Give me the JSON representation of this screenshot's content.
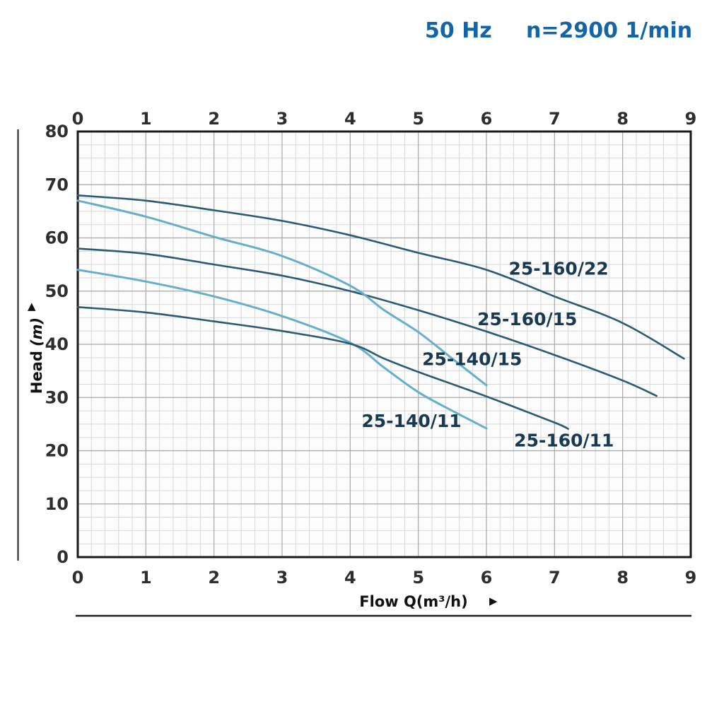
{
  "page": {
    "header": {
      "frequency": "50 Hz",
      "speed": "n=2900 1/min"
    }
  },
  "icons": {
    "y_axis_arrow": "▲",
    "x_axis_arrow": "▶"
  },
  "chart_data": {
    "type": "line",
    "header": {
      "frequency": "50 Hz",
      "speed": "n=2900 1/min"
    },
    "xlabel": "Flow Q(m³/h)",
    "ylabel_main": "Head",
    "ylabel_unit": "(m)",
    "xlim": [
      0,
      9
    ],
    "ylim": [
      0,
      80
    ],
    "x_ticks": [
      0,
      1,
      2,
      3,
      4,
      5,
      6,
      7,
      8,
      9
    ],
    "x_ticks_top": [
      0,
      1,
      2,
      3,
      4,
      5,
      6,
      7,
      8,
      9
    ],
    "y_ticks": [
      0,
      10,
      20,
      30,
      40,
      50,
      60,
      70,
      80
    ],
    "minor_x_step": 0.2,
    "minor_y_step": 2.5,
    "grid": true,
    "legend_position": "inline-curve-labels",
    "colors": {
      "dark_curve": "#2a5a74",
      "light_curve": "#66afcb",
      "curve_label": "#173a52",
      "header_text": "#1464a8",
      "grid_minor": "#d8d8d8",
      "grid_major": "#a8a8a8",
      "axis": "#1a1a1a",
      "tick_text": "#2e2e2e"
    },
    "series": [
      {
        "name": "25-160/22",
        "color": "dark_curve",
        "points": [
          [
            0,
            68
          ],
          [
            1,
            67
          ],
          [
            2,
            65.2
          ],
          [
            3,
            63.2
          ],
          [
            4,
            60.5
          ],
          [
            5,
            57.2
          ],
          [
            6,
            54
          ],
          [
            7,
            49
          ],
          [
            8,
            44
          ],
          [
            8.9,
            37.3
          ]
        ],
        "label_pos": {
          "q": 7.06,
          "h": 54.2
        }
      },
      {
        "name": "25-160/15",
        "color": "dark_curve",
        "points": [
          [
            0,
            58
          ],
          [
            1,
            57
          ],
          [
            2,
            55
          ],
          [
            3,
            52.9
          ],
          [
            4,
            50
          ],
          [
            5,
            46.4
          ],
          [
            6,
            42.4
          ],
          [
            7,
            38
          ],
          [
            8,
            33.2
          ],
          [
            8.5,
            30.3
          ]
        ],
        "label_pos": {
          "q": 6.6,
          "h": 44.7
        }
      },
      {
        "name": "25-140/15",
        "color": "light_curve",
        "points": [
          [
            0,
            67
          ],
          [
            1,
            64
          ],
          [
            2,
            60.2
          ],
          [
            3,
            56.6
          ],
          [
            4,
            51
          ],
          [
            4.5,
            46.4
          ],
          [
            5,
            42.3
          ],
          [
            5.5,
            37.3
          ],
          [
            6,
            32.3
          ]
        ],
        "label_pos": {
          "q": 5.79,
          "h": 37.2
        }
      },
      {
        "name": "25-140/11",
        "color": "light_curve",
        "points": [
          [
            0,
            54
          ],
          [
            1,
            51.8
          ],
          [
            2,
            49
          ],
          [
            3,
            45.3
          ],
          [
            4,
            40.3
          ],
          [
            4.5,
            35.6
          ],
          [
            5,
            31
          ],
          [
            5.5,
            27.5
          ],
          [
            6,
            24.2
          ]
        ],
        "label_pos": {
          "q": 4.9,
          "h": 25.6
        }
      },
      {
        "name": "25-160/11",
        "color": "dark_curve",
        "points": [
          [
            0,
            47
          ],
          [
            1,
            46
          ],
          [
            2,
            44.3
          ],
          [
            3,
            42.5
          ],
          [
            4,
            40.1
          ],
          [
            4.5,
            37.3
          ],
          [
            5,
            34.8
          ],
          [
            6,
            30.2
          ],
          [
            7,
            25.3
          ],
          [
            7.2,
            24.1
          ]
        ],
        "label_pos": {
          "q": 7.14,
          "h": 21.9
        }
      }
    ]
  }
}
